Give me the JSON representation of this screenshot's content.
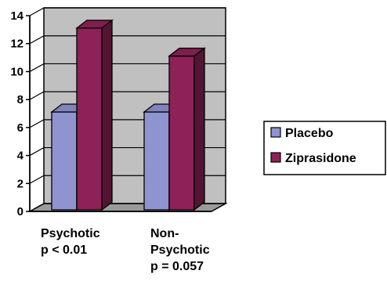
{
  "chart_data": {
    "type": "bar",
    "categories": [
      [
        "Psychotic",
        "p < 0.01"
      ],
      [
        "Non-",
        "Psychotic",
        "p = 0.057"
      ]
    ],
    "series": [
      {
        "name": "Placebo",
        "values": [
          7,
          7
        ],
        "color": "#8f93d0"
      },
      {
        "name": "Ziprasidone",
        "values": [
          13,
          11
        ],
        "color": "#8c2257"
      }
    ],
    "ylim": [
      0,
      14
    ],
    "yticks": [
      0,
      2,
      4,
      6,
      8,
      10,
      12,
      14
    ],
    "grid": true,
    "legend_position": "right",
    "plot_background": "#c0c0c0",
    "title": "",
    "xlabel": "",
    "ylabel": ""
  }
}
